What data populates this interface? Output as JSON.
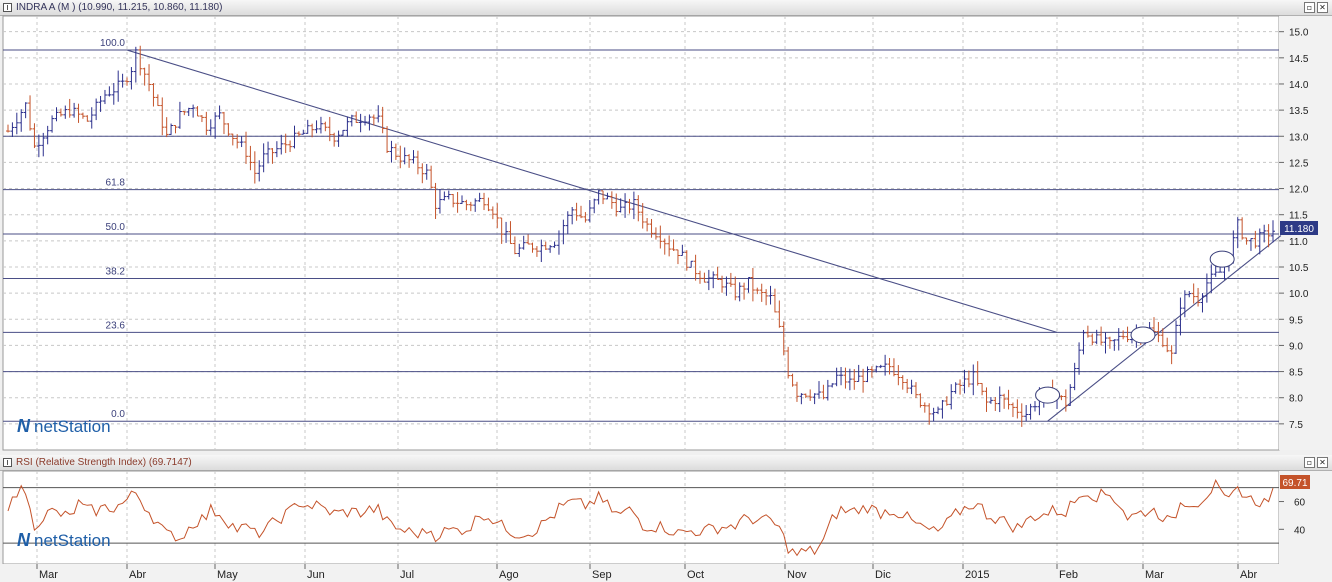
{
  "main_panel": {
    "title": "INDRA A (M ) (10.990, 11.215, 10.860, 11.180)",
    "last_price_tag": "11.180",
    "icons": [
      "chart-icon",
      "restore-icon",
      "close-icon"
    ]
  },
  "rsi_panel": {
    "title": "RSI (Relative Strength Index) (69.7147)",
    "last_value_tag": "69.71"
  },
  "watermark": {
    "text": "netStation"
  },
  "colors": {
    "up_bar": "#2b2f8c",
    "down_bar": "#c4532a",
    "rsi_line": "#c4532a",
    "grid": "#c8c8c8",
    "level_line": "#4a4e86",
    "price_tag_bg": "#2d3a86",
    "rsi_tag_bg": "#c4532a",
    "watermark": "#1f5fa8"
  },
  "chart_data": [
    {
      "type": "bar",
      "series_kind": "ohlc",
      "x_axis": {
        "labels": [
          "Mar",
          "Abr",
          "May",
          "Jun",
          "Jul",
          "Ago",
          "Sep",
          "Oct",
          "Nov",
          "Dic",
          "2015",
          "Feb",
          "Mar",
          "Abr"
        ],
        "start": "2014-03",
        "end": "2015-04"
      },
      "y_axis": {
        "position": "right",
        "ylim": [
          7.0,
          15.3
        ],
        "ticks": [
          "15.0",
          "14.5",
          "14.0",
          "13.5",
          "13.0",
          "12.5",
          "12.0",
          "11.5",
          "11.0",
          "10.5",
          "10.0",
          "9.5",
          "9.0",
          "8.5",
          "8.0",
          "7.5"
        ]
      },
      "fib_levels": [
        {
          "label": "100.0",
          "value": 14.65
        },
        {
          "label": "61.8",
          "value": 11.98
        },
        {
          "label": "50.0",
          "value": 11.13
        },
        {
          "label": "38.2",
          "value": 10.28
        },
        {
          "label": "23.6",
          "value": 9.25
        },
        {
          "label": "0.0",
          "value": 7.55
        }
      ],
      "horizontal_lines": [
        14.65,
        13.0,
        11.98,
        11.13,
        10.28,
        9.25,
        8.5,
        7.55
      ],
      "trendlines": [
        {
          "from": {
            "x": "2014-04-01",
            "y": 14.65
          },
          "to": {
            "x": "2015-02-01",
            "y": 9.25
          }
        },
        {
          "from": {
            "x": "2015-01-28",
            "y": 7.55
          },
          "to": {
            "x": "2015-04-15",
            "y": 11.1
          }
        }
      ],
      "ellipse_markers": [
        {
          "x": "2015-01-28",
          "y": 8.05
        },
        {
          "x": "2015-03-01",
          "y": 9.2
        },
        {
          "x": "2015-03-26",
          "y": 10.65
        }
      ],
      "close_path": [
        [
          0,
          13.1
        ],
        [
          4,
          13.6
        ],
        [
          6,
          12.8
        ],
        [
          10,
          13.3
        ],
        [
          14,
          13.5
        ],
        [
          18,
          13.3
        ],
        [
          22,
          13.8
        ],
        [
          26,
          14.0
        ],
        [
          28,
          14.3
        ],
        [
          29,
          14.6
        ],
        [
          32,
          14.0
        ],
        [
          34,
          13.5
        ],
        [
          36,
          13.0
        ],
        [
          39,
          13.4
        ],
        [
          42,
          13.6
        ],
        [
          45,
          13.2
        ],
        [
          48,
          13.4
        ],
        [
          51,
          13.0
        ],
        [
          54,
          12.7
        ],
        [
          56,
          12.3
        ],
        [
          58,
          12.6
        ],
        [
          62,
          12.8
        ],
        [
          66,
          13.0
        ],
        [
          70,
          13.2
        ],
        [
          74,
          13.0
        ],
        [
          78,
          13.3
        ],
        [
          82,
          13.4
        ],
        [
          84,
          13.3
        ],
        [
          86,
          12.8
        ],
        [
          89,
          12.6
        ],
        [
          92,
          12.5
        ],
        [
          95,
          12.3
        ],
        [
          97,
          11.7
        ],
        [
          100,
          11.8
        ],
        [
          104,
          11.7
        ],
        [
          108,
          11.8
        ],
        [
          110,
          11.6
        ],
        [
          112,
          11.2
        ],
        [
          115,
          10.8
        ],
        [
          118,
          10.9
        ],
        [
          121,
          10.9
        ],
        [
          124,
          11.0
        ],
        [
          126,
          11.3
        ],
        [
          128,
          11.6
        ],
        [
          131,
          11.4
        ],
        [
          134,
          11.9
        ],
        [
          136,
          11.8
        ],
        [
          139,
          11.6
        ],
        [
          142,
          11.7
        ],
        [
          145,
          11.3
        ],
        [
          148,
          11.1
        ],
        [
          150,
          10.9
        ],
        [
          152,
          10.8
        ],
        [
          155,
          10.5
        ],
        [
          158,
          10.3
        ],
        [
          162,
          10.2
        ],
        [
          165,
          10.0
        ],
        [
          168,
          10.2
        ],
        [
          170,
          10.0
        ],
        [
          173,
          9.9
        ],
        [
          175,
          9.3
        ],
        [
          177,
          8.5
        ],
        [
          179,
          8.1
        ],
        [
          182,
          8.1
        ],
        [
          185,
          8.0
        ],
        [
          188,
          8.4
        ],
        [
          191,
          8.3
        ],
        [
          194,
          8.4
        ],
        [
          197,
          8.5
        ],
        [
          200,
          8.6
        ],
        [
          203,
          8.4
        ],
        [
          206,
          8.0
        ],
        [
          209,
          7.8
        ],
        [
          211,
          7.7
        ],
        [
          214,
          8.1
        ],
        [
          217,
          8.3
        ],
        [
          219,
          8.4
        ],
        [
          222,
          7.9
        ],
        [
          225,
          8.0
        ],
        [
          228,
          7.8
        ],
        [
          231,
          7.7
        ],
        [
          234,
          8.0
        ],
        [
          237,
          8.1
        ],
        [
          240,
          7.9
        ],
        [
          242,
          8.5
        ],
        [
          244,
          9.3
        ],
        [
          247,
          9.1
        ],
        [
          250,
          9.0
        ],
        [
          253,
          9.2
        ],
        [
          256,
          9.2
        ],
        [
          259,
          9.3
        ],
        [
          262,
          9.1
        ],
        [
          264,
          8.8
        ],
        [
          266,
          9.8
        ],
        [
          268,
          10.0
        ],
        [
          270,
          9.9
        ],
        [
          272,
          10.2
        ],
        [
          275,
          10.4
        ],
        [
          277,
          10.7
        ],
        [
          279,
          11.3
        ],
        [
          281,
          11.0
        ],
        [
          283,
          11.0
        ],
        [
          285,
          11.1
        ],
        [
          287,
          11.2
        ]
      ]
    },
    {
      "type": "line",
      "indicator": "RSI",
      "y_axis": {
        "position": "right",
        "ylim": [
          15,
          82
        ],
        "ticks": [
          "60",
          "40"
        ],
        "reference_levels": [
          70,
          30
        ]
      },
      "last_value": 69.71
    }
  ]
}
